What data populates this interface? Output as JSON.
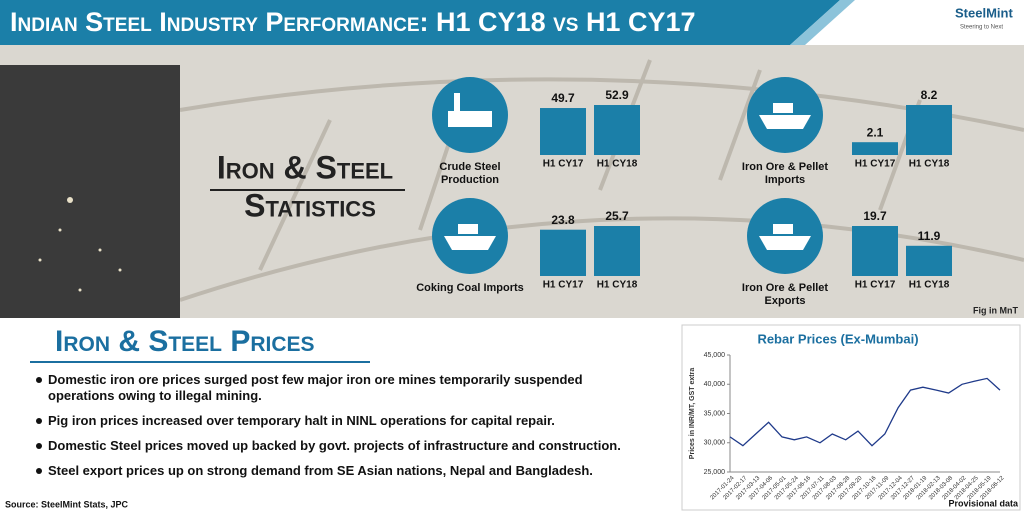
{
  "header": {
    "title": "Indian Steel Industry Performance: H1 CY18 vs H1 CY17",
    "logo": "SteelMint",
    "tagline": "Steering to Next"
  },
  "stats_heading": [
    "Iron & Steel",
    "Statistics"
  ],
  "unit_note": "Fig in MnT",
  "chart_data": [
    {
      "type": "bar",
      "title": "Crude Steel Production",
      "categories": [
        "H1 CY17",
        "H1 CY18"
      ],
      "values": [
        49.7,
        52.9
      ],
      "color": "#1b7fa8"
    },
    {
      "type": "bar",
      "title": "Coking Coal Imports",
      "categories": [
        "H1 CY17",
        "H1 CY18"
      ],
      "values": [
        23.8,
        25.7
      ],
      "color": "#1b7fa8"
    },
    {
      "type": "bar",
      "title": "Iron Ore & Pellet Imports",
      "categories": [
        "H1 CY17",
        "H1 CY18"
      ],
      "values": [
        2.1,
        8.2
      ],
      "color": "#1b7fa8"
    },
    {
      "type": "bar",
      "title": "Iron Ore & Pellet Exports",
      "categories": [
        "H1 CY17",
        "H1 CY18"
      ],
      "values": [
        19.7,
        11.9
      ],
      "color": "#1b7fa8"
    },
    {
      "type": "line",
      "title": "Rebar Prices (Ex-Mumbai)",
      "y_label": "Prices in INR/MT, GST extra",
      "note": "Provisional data",
      "x": [
        "2017-01-24",
        "2017-02-17",
        "2017-03-13",
        "2017-04-06",
        "2017-05-01",
        "2017-05-24",
        "2017-06-16",
        "2017-07-11",
        "2017-08-03",
        "2017-08-28",
        "2017-09-20",
        "2017-10-16",
        "2017-11-09",
        "2017-12-04",
        "2017-12-27",
        "2018-01-19",
        "2018-02-13",
        "2018-03-08",
        "2018-04-02",
        "2018-04-25",
        "2018-05-19",
        "2018-06-12"
      ],
      "values": [
        31000,
        29500,
        31500,
        33500,
        31000,
        30500,
        31000,
        30000,
        31500,
        30500,
        32000,
        29500,
        31500,
        36000,
        39000,
        39500,
        39000,
        38500,
        40000,
        40500,
        41000,
        39000
      ],
      "color": "#1f3a8a",
      "ylim": [
        25000,
        45000
      ],
      "yticks": [
        {
          "value": 25000,
          "label": "25,000"
        },
        {
          "value": 30000,
          "label": "30,000"
        },
        {
          "value": 35000,
          "label": "35,000"
        },
        {
          "value": 40000,
          "label": "40,000"
        },
        {
          "value": 45000,
          "label": "45,000"
        }
      ]
    }
  ],
  "prices": {
    "title": "Iron & Steel Prices",
    "bullets": [
      "Domestic iron ore prices surged post few major iron ore mines temporarily suspended operations owing to illegal mining.",
      "Pig iron prices increased over temporary halt in NINL operations for capital repair.",
      "Domestic Steel prices moved up backed by govt. projects of infrastructure and construction.",
      "Steel export prices up on strong demand from SE Asian nations, Nepal and Bangladesh."
    ]
  },
  "source": "Source: SteelMint Stats, JPC"
}
